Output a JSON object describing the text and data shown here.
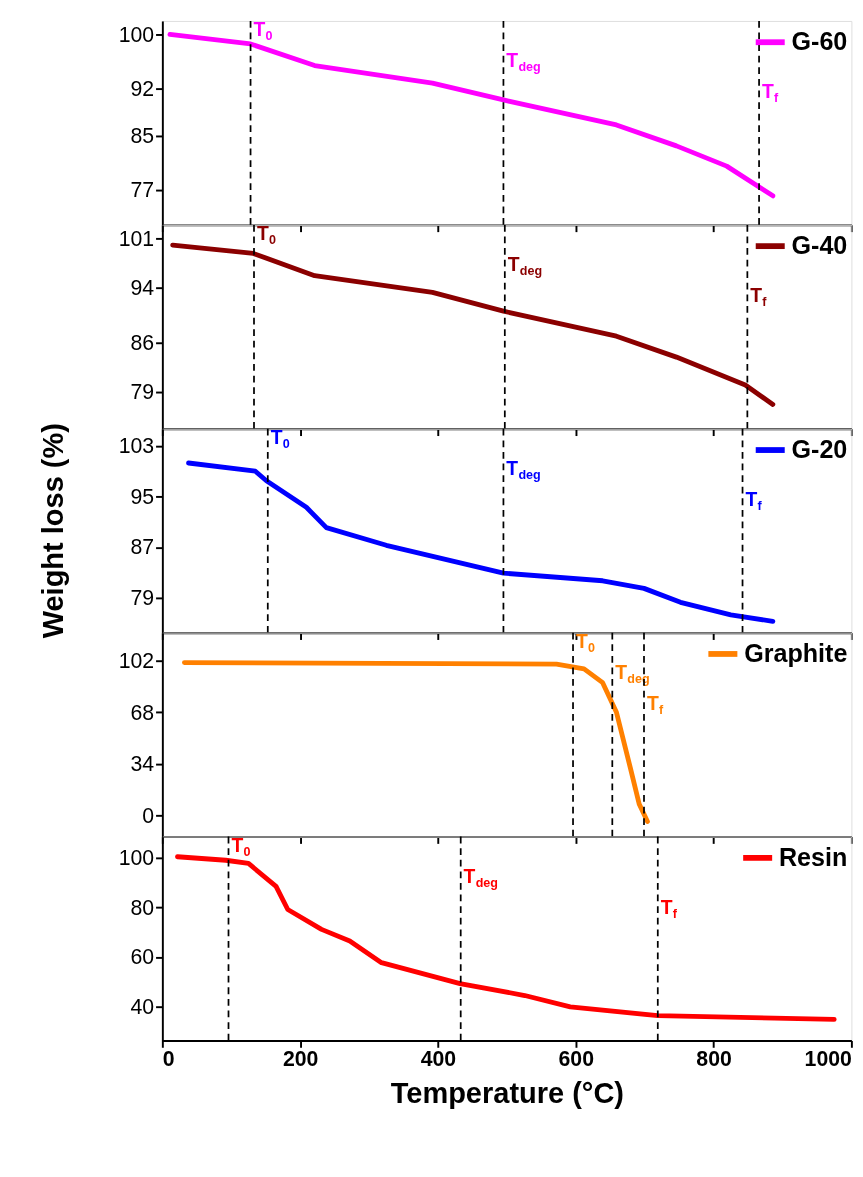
{
  "chart_data": [
    {
      "type": "line",
      "x": [
        11,
        128,
        221,
        392,
        495,
        659,
        746,
        819,
        886
      ],
      "series": [
        {
          "name": "G-60",
          "color": "#ff00ff",
          "values": [
            100.0,
            98.6,
            95.4,
            92.8,
            90.3,
            86.6,
            83.5,
            80.5,
            76.1
          ]
        }
      ],
      "xlim": [
        0,
        1000
      ],
      "xticks": [
        0,
        200,
        400,
        600,
        800,
        1000
      ],
      "ylim": [
        71.8,
        102
      ],
      "yticks": [
        77,
        85,
        92,
        100
      ],
      "tick_labels": "y",
      "legend": "top right",
      "grid": false,
      "line_style": "solid",
      "ref_lines": [
        {
          "axis": "x",
          "value": 128,
          "label": "T$_{0}$",
          "color": "#000000",
          "line_style": "dashed"
        },
        {
          "axis": "x",
          "value": 495,
          "label": "T$_{deg}$",
          "color": "#000000",
          "line_style": "dashed"
        },
        {
          "axis": "x",
          "value": 866,
          "label": "T$_{f}$",
          "color": "#000000",
          "line_style": "dashed"
        }
      ]
    },
    {
      "type": "line",
      "x": [
        15,
        132,
        221,
        392,
        495,
        659,
        746,
        846,
        886
      ],
      "series": [
        {
          "name": "G-40",
          "color": "#8b0000",
          "values": [
            100.1,
            98.9,
            95.7,
            93.3,
            90.6,
            87.0,
            84.0,
            80.0,
            77.2
          ]
        }
      ],
      "xlim": [
        0,
        1000
      ],
      "xticks": [
        0,
        200,
        400,
        600,
        800,
        1000
      ],
      "ylim": [
        73.7,
        103
      ],
      "yticks": [
        79,
        86,
        94,
        101
      ],
      "tick_labels": "y",
      "legend": "top right",
      "grid": false,
      "line_style": "solid",
      "ref_lines": [
        {
          "axis": "x",
          "value": 133,
          "label": "T$_{0}$",
          "color": "#000000",
          "line_style": "dashed"
        },
        {
          "axis": "x",
          "value": 497,
          "label": "T$_{deg}$",
          "color": "#000000",
          "line_style": "dashed"
        },
        {
          "axis": "x",
          "value": 849,
          "label": "T$_{f}$",
          "color": "#000000",
          "line_style": "dashed"
        }
      ]
    },
    {
      "type": "line",
      "ylabel": "Weight loss (%)",
      "x": [
        38,
        135,
        151,
        209,
        238,
        325,
        495,
        639,
        699,
        752,
        825,
        886
      ],
      "series": [
        {
          "name": "G-20",
          "color": "#0000ff",
          "values": [
            100.3,
            99.0,
            97.5,
            93.3,
            90.1,
            87.3,
            82.9,
            81.7,
            80.5,
            78.3,
            76.3,
            75.3
          ]
        }
      ],
      "xlim": [
        0,
        1000
      ],
      "xticks": [
        0,
        200,
        400,
        600,
        800,
        1000
      ],
      "ylim": [
        73.5,
        105.7
      ],
      "yticks": [
        79,
        87,
        95,
        103
      ],
      "tick_labels": "y",
      "legend": "top right",
      "grid": false,
      "line_style": "solid",
      "ref_lines": [
        {
          "axis": "x",
          "value": 153,
          "label": "T$_{0}$",
          "color": "#000000",
          "line_style": "dashed"
        },
        {
          "axis": "x",
          "value": 495,
          "label": "T$_{deg}$",
          "color": "#000000",
          "line_style": "dashed"
        },
        {
          "axis": "x",
          "value": 842,
          "label": "T$_{f}$",
          "color": "#000000",
          "line_style": "dashed"
        }
      ]
    },
    {
      "type": "line",
      "x": [
        32,
        572,
        612,
        639,
        659,
        679,
        692,
        704
      ],
      "series": [
        {
          "name": "Graphite",
          "color": "#ff8000",
          "values": [
            100.7,
            99.7,
            96.6,
            87.5,
            68,
            31.7,
            7.6,
            -4
          ]
        }
      ],
      "xlim": [
        0,
        1000
      ],
      "xticks": [
        0,
        200,
        400,
        600,
        800,
        1000
      ],
      "ylim": [
        -13.9,
        120.4
      ],
      "yticks": [
        0,
        34,
        68,
        102
      ],
      "tick_labels": "y",
      "legend": "top right",
      "grid": false,
      "line_style": "solid",
      "ref_lines": [
        {
          "axis": "x",
          "value": 596,
          "label": "T$_{0}$",
          "color": "#000000",
          "line_style": "dashed"
        },
        {
          "axis": "x",
          "value": 653,
          "label": "T$_{deg}$",
          "color": "#000000",
          "line_style": "dashed"
        },
        {
          "axis": "x",
          "value": 699,
          "label": "T$_{f}$",
          "color": "#000000",
          "line_style": "dashed"
        }
      ]
    },
    {
      "type": "line",
      "xlabel": "Temperature (°C)",
      "x": [
        22,
        92,
        125,
        165,
        182,
        231,
        272,
        318,
        432,
        526,
        592,
        719,
        975
      ],
      "series": [
        {
          "name": "Resin",
          "color": "#ff0000",
          "values": [
            100.4,
            99.0,
            97.7,
            88.5,
            79.2,
            71.2,
            66.5,
            57.8,
            49.4,
            44.6,
            40.0,
            36.5,
            35.0
          ]
        }
      ],
      "xlim": [
        0,
        1000
      ],
      "xticks": [
        0,
        200,
        400,
        600,
        800,
        1000
      ],
      "ylim": [
        26.5,
        108.5
      ],
      "yticks": [
        40,
        60,
        80,
        100
      ],
      "legend": "top right",
      "grid": false,
      "line_style": "solid",
      "ref_lines": [
        {
          "axis": "x",
          "value": 96,
          "label": "T$_{0}$",
          "color": "#000000",
          "line_style": "dashed"
        },
        {
          "axis": "x",
          "value": 433,
          "label": "T$_{deg}$",
          "color": "#000000",
          "line_style": "dashed"
        },
        {
          "axis": "x",
          "value": 719,
          "label": "T$_{f}$",
          "color": "#000000",
          "line_style": "dashed"
        }
      ]
    }
  ]
}
